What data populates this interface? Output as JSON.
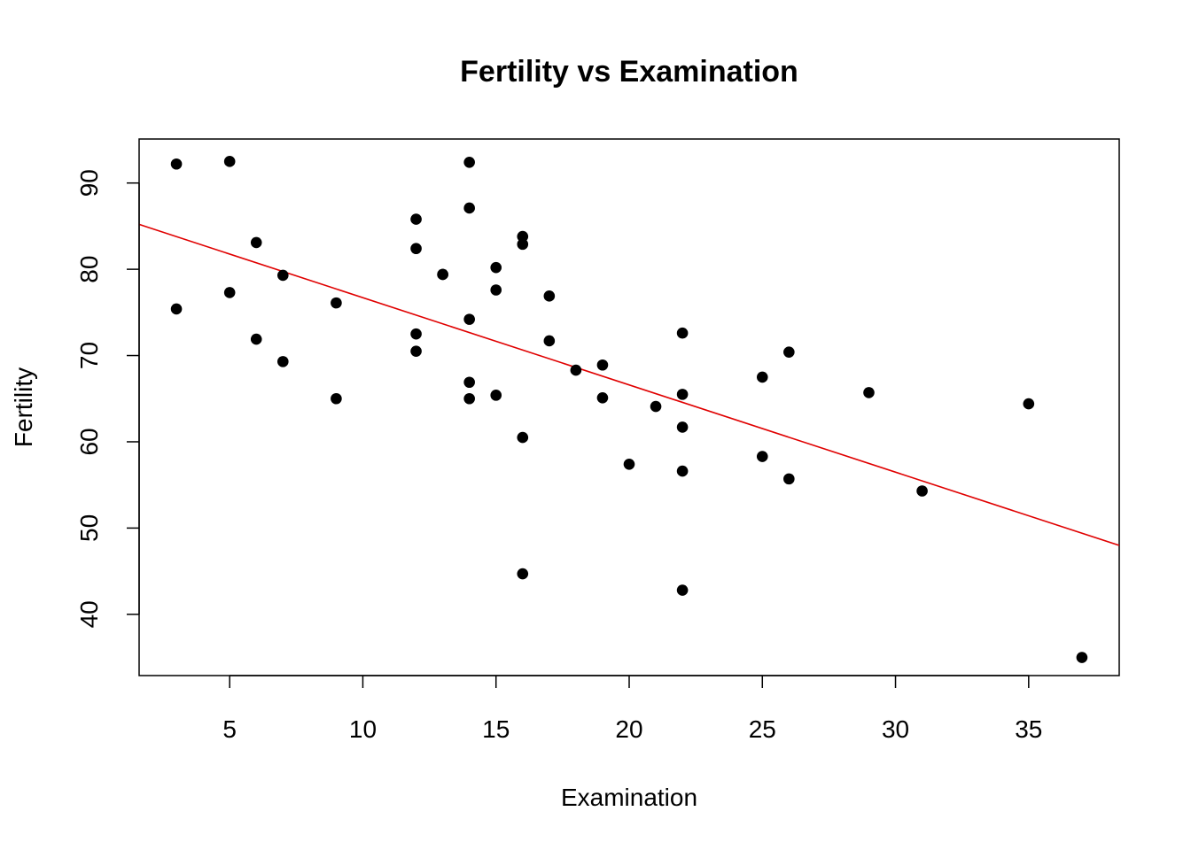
{
  "chart_data": {
    "type": "scatter",
    "title": "Fertility vs Examination",
    "xlabel": "Examination",
    "ylabel": "Fertility",
    "xlim": [
      1.6,
      38.4
    ],
    "ylim": [
      32.9,
      95.1
    ],
    "x_ticks": [
      5,
      10,
      15,
      20,
      25,
      30,
      35
    ],
    "y_ticks": [
      40,
      50,
      60,
      70,
      80,
      90
    ],
    "grid": false,
    "colors": {
      "points": "#000000",
      "fit_line": "#e00000",
      "frame": "#000000"
    },
    "series": [
      {
        "points": [
          [
            15,
            80.2
          ],
          [
            6,
            83.1
          ],
          [
            5,
            92.5
          ],
          [
            12,
            85.8
          ],
          [
            17,
            76.9
          ],
          [
            9,
            76.1
          ],
          [
            16,
            83.8
          ],
          [
            14,
            92.4
          ],
          [
            12,
            82.4
          ],
          [
            16,
            82.9
          ],
          [
            14,
            87.1
          ],
          [
            21,
            64.1
          ],
          [
            14,
            66.9
          ],
          [
            19,
            68.9
          ],
          [
            22,
            61.7
          ],
          [
            18,
            68.3
          ],
          [
            17,
            71.7
          ],
          [
            26,
            55.7
          ],
          [
            31,
            54.3
          ],
          [
            19,
            65.1
          ],
          [
            22,
            65.5
          ],
          [
            14,
            65.0
          ],
          [
            22,
            56.6
          ],
          [
            20,
            57.4
          ],
          [
            12,
            72.5
          ],
          [
            14,
            74.2
          ],
          [
            13,
            79.4
          ],
          [
            16,
            60.5
          ],
          [
            15,
            77.6
          ],
          [
            7,
            79.3
          ],
          [
            3,
            92.2
          ],
          [
            6,
            71.9
          ],
          [
            5,
            77.3
          ],
          [
            3,
            75.4
          ],
          [
            12,
            70.5
          ],
          [
            7,
            69.3
          ],
          [
            9,
            65.0
          ],
          [
            13,
            79.4
          ],
          [
            22,
            72.6
          ],
          [
            16,
            44.7
          ],
          [
            25,
            58.3
          ],
          [
            22,
            42.8
          ],
          [
            37,
            35.0
          ],
          [
            35,
            64.4
          ],
          [
            29,
            65.7
          ],
          [
            25,
            67.5
          ],
          [
            26,
            70.4
          ],
          [
            15,
            65.4
          ]
        ]
      }
    ],
    "fit_line": {
      "intercept": 86.82,
      "slope": -1.0113
    }
  }
}
